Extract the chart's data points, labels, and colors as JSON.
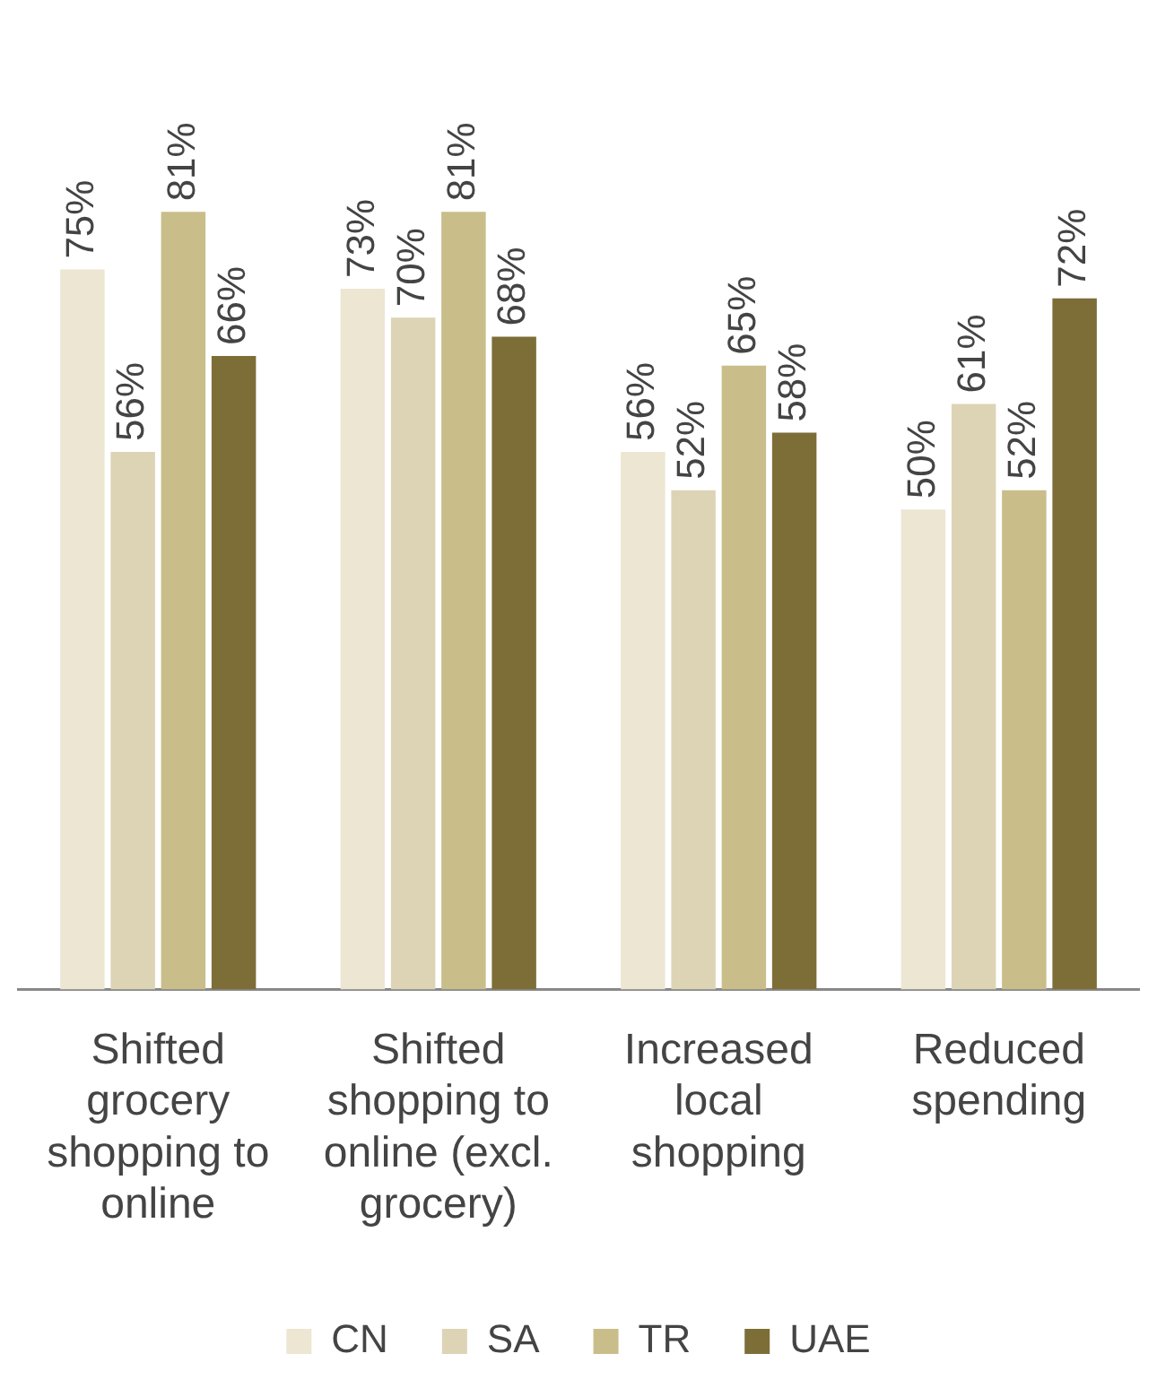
{
  "chart_data": {
    "type": "bar",
    "categories": [
      "Shifted grocery shopping to online",
      "Shifted shopping to online (excl. grocery)",
      "Increased local shopping",
      "Reduced spending"
    ],
    "series": [
      {
        "name": "CN",
        "color": "#ece6d3",
        "values": [
          75,
          73,
          56,
          50
        ],
        "value_labels": [
          "75%",
          "73%",
          "56%",
          "50%"
        ]
      },
      {
        "name": "SA",
        "color": "#ddd4b6",
        "values": [
          56,
          70,
          52,
          61
        ],
        "value_labels": [
          "56%",
          "70%",
          "52%",
          "61%"
        ]
      },
      {
        "name": "TR",
        "color": "#c9bd8a",
        "values": [
          81,
          81,
          65,
          52
        ],
        "value_labels": [
          "81%",
          "81%",
          "65%",
          "52%"
        ]
      },
      {
        "name": "UAE",
        "color": "#7d6e38",
        "values": [
          66,
          68,
          58,
          72
        ],
        "value_labels": [
          "66%",
          "68%",
          "58%",
          "72%"
        ]
      }
    ],
    "legend": "bottom",
    "grid": false
  }
}
